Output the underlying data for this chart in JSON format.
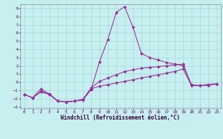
{
  "xlabel": "Windchill (Refroidissement éolien,°C)",
  "bg_color": "#c8eff0",
  "grid_color": "#a0d8d8",
  "line_color": "#993399",
  "xlim": [
    -0.5,
    23.5
  ],
  "ylim": [
    -3.2,
    9.5
  ],
  "yticks": [
    -3,
    -2,
    -1,
    0,
    1,
    2,
    3,
    4,
    5,
    6,
    7,
    8,
    9
  ],
  "xticks": [
    0,
    1,
    2,
    3,
    4,
    5,
    6,
    7,
    8,
    9,
    10,
    11,
    12,
    13,
    14,
    15,
    16,
    17,
    18,
    19,
    20,
    21,
    22,
    23
  ],
  "s1_x": [
    0,
    1,
    2,
    3,
    4,
    5,
    6,
    7,
    8,
    9,
    10,
    11,
    12,
    13,
    14,
    15,
    16,
    17,
    18,
    19,
    20,
    21,
    22,
    23
  ],
  "s1_y": [
    -1.5,
    -1.9,
    -0.8,
    -1.5,
    -2.3,
    -2.4,
    -2.3,
    -2.2,
    -0.9,
    2.5,
    5.2,
    8.5,
    9.2,
    6.7,
    3.5,
    3.0,
    2.7,
    2.4,
    2.2,
    2.0,
    -0.3,
    -0.4,
    -0.4,
    -0.2
  ],
  "s2_x": [
    0,
    1,
    2,
    3,
    4,
    5,
    6,
    7,
    8,
    9,
    10,
    11,
    12,
    13,
    14,
    15,
    16,
    17,
    18,
    19,
    20,
    21,
    22,
    23
  ],
  "s2_y": [
    -1.5,
    -1.9,
    -1.1,
    -1.4,
    -2.3,
    -2.4,
    -2.3,
    -2.1,
    -0.7,
    0.1,
    0.5,
    0.9,
    1.3,
    1.5,
    1.7,
    1.8,
    1.9,
    2.0,
    2.1,
    2.2,
    -0.4,
    -0.4,
    -0.3,
    -0.2
  ],
  "s3_x": [
    0,
    1,
    2,
    3,
    4,
    5,
    6,
    7,
    8,
    9,
    10,
    11,
    12,
    13,
    14,
    15,
    16,
    17,
    18,
    19,
    20,
    21,
    22,
    23
  ],
  "s3_y": [
    -1.5,
    -1.9,
    -1.2,
    -1.5,
    -2.3,
    -2.4,
    -2.3,
    -2.1,
    -0.8,
    -0.5,
    -0.3,
    -0.1,
    0.1,
    0.3,
    0.5,
    0.7,
    0.9,
    1.1,
    1.3,
    1.6,
    -0.4,
    -0.4,
    -0.3,
    -0.2
  ],
  "marker_size": 2.5,
  "line_width": 0.8
}
